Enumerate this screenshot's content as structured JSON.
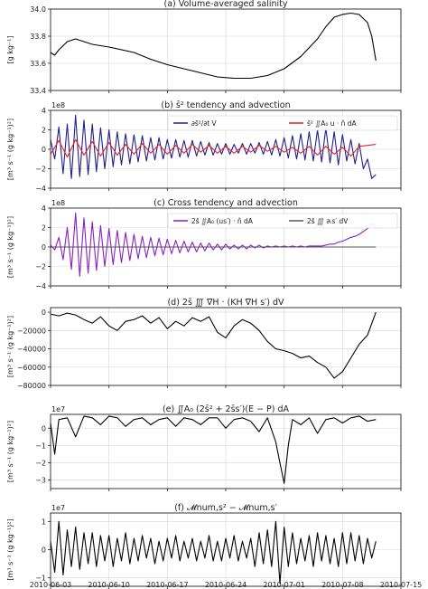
{
  "figure": {
    "date_labels": [
      "2010-06-03",
      "2010-06-10",
      "2010-06-17",
      "2010-06-24",
      "2010-07-01",
      "2010-07-08",
      "2010-07-15"
    ]
  },
  "chart_data": [
    {
      "type": "line",
      "title": "(a) Volume-averaged salinity",
      "ylabel": "[g kg⁻¹]",
      "ylim": [
        33.4,
        34.0
      ],
      "yticks": [
        "33.4",
        "33.6",
        "33.8",
        "34.0"
      ],
      "offset_label": "",
      "grid": true,
      "series": [
        {
          "color": "#000000",
          "x": [
            0,
            0.5,
            1,
            2,
            3,
            4,
            5,
            7,
            10,
            12,
            14,
            16,
            18,
            20,
            22,
            24,
            26,
            28,
            30,
            32,
            33,
            34,
            35,
            36,
            37,
            38,
            38.5,
            39
          ],
          "y": [
            33.68,
            33.66,
            33.7,
            33.76,
            33.78,
            33.76,
            33.74,
            33.72,
            33.68,
            33.63,
            33.59,
            33.56,
            33.53,
            33.5,
            33.49,
            33.49,
            33.51,
            33.56,
            33.65,
            33.78,
            33.87,
            33.94,
            33.96,
            33.97,
            33.96,
            33.9,
            33.8,
            33.62
          ]
        }
      ]
    },
    {
      "type": "line",
      "title": "(b) s̄² tendency and advection",
      "ylabel": "[m³ s⁻¹ (g kg⁻¹)²]",
      "ylim": [
        -4,
        4
      ],
      "yticks": [
        "−4",
        "−2",
        "0",
        "2",
        "4"
      ],
      "offset_label": "1e8",
      "grid": true,
      "legend_position": "top-right",
      "legend": [
        "∂s̄²/∂t V",
        "s̄² ∬A₀ u · n̂ dA"
      ],
      "series": [
        {
          "color": "#1f1f8f",
          "x": [
            0,
            0.5,
            1,
            1.5,
            2,
            2.5,
            3,
            3.5,
            4,
            4.5,
            5,
            5.5,
            6,
            6.5,
            7,
            7.5,
            8,
            8.5,
            9,
            9.5,
            10,
            10.5,
            11,
            11.5,
            12,
            12.5,
            13,
            13.5,
            14,
            14.5,
            15,
            15.5,
            16,
            16.5,
            17,
            17.5,
            18,
            18.5,
            19,
            19.5,
            20,
            20.5,
            21,
            21.5,
            22,
            22.5,
            23,
            23.5,
            24,
            24.5,
            25,
            25.5,
            26,
            26.5,
            27,
            27.5,
            28,
            28.5,
            29,
            29.5,
            30,
            30.5,
            31,
            31.5,
            32,
            32.5,
            33,
            33.5,
            34,
            34.5,
            35,
            35.5,
            36,
            36.5,
            37,
            37.5,
            38,
            38.5,
            39
          ],
          "y": [
            1.0,
            -1.0,
            2.3,
            -2.5,
            2.6,
            -3.0,
            3.5,
            -2.8,
            3.0,
            -2.6,
            2.6,
            -2.3,
            2.2,
            -2.0,
            2.0,
            -1.8,
            1.8,
            -1.6,
            1.6,
            -1.5,
            1.5,
            -1.3,
            1.4,
            -1.2,
            1.2,
            -1.1,
            1.2,
            -1.0,
            1.0,
            -0.9,
            1.0,
            -0.8,
            0.9,
            -0.8,
            0.9,
            -0.7,
            0.8,
            -0.6,
            0.7,
            -0.6,
            0.6,
            -0.5,
            0.6,
            -0.5,
            0.5,
            -0.4,
            0.6,
            -0.5,
            0.6,
            -0.4,
            0.7,
            -0.5,
            0.8,
            -0.6,
            1.0,
            -0.7,
            1.2,
            -0.9,
            1.4,
            -1.0,
            1.6,
            -1.1,
            1.8,
            -1.2,
            2.0,
            -1.3,
            2.2,
            -1.4,
            1.8,
            -1.6,
            1.5,
            -1.2,
            1.0,
            -1.5,
            0.6,
            -2.0,
            -1.0,
            -3.0,
            -2.6
          ]
        },
        {
          "color": "#e8231e",
          "x": [
            0,
            1,
            2,
            3,
            4,
            5,
            6,
            7,
            8,
            9,
            10,
            11,
            12,
            13,
            14,
            15,
            16,
            17,
            18,
            19,
            20,
            21,
            22,
            23,
            24,
            25,
            26,
            27,
            28,
            29,
            30,
            31,
            32,
            33,
            34,
            35,
            36,
            37,
            38,
            39
          ],
          "y": [
            -0.5,
            0.9,
            -0.8,
            1.0,
            -0.6,
            0.8,
            -0.7,
            0.7,
            -0.6,
            0.5,
            -0.5,
            0.6,
            -0.4,
            0.5,
            -0.5,
            0.4,
            -0.4,
            0.5,
            -0.3,
            0.4,
            -0.4,
            0.3,
            -0.4,
            0.3,
            -0.3,
            0.4,
            -0.2,
            0.3,
            -0.3,
            0.2,
            -0.4,
            0.3,
            -0.6,
            0.3,
            -0.5,
            0.2,
            -0.7,
            0.3,
            0.4,
            0.5
          ]
        }
      ]
    },
    {
      "type": "line",
      "title": "(c) Cross tendency and advection",
      "ylabel": "[m³ s⁻¹ (g kg⁻¹)²]",
      "ylim": [
        -4,
        4
      ],
      "yticks": [
        "−4",
        "−2",
        "0",
        "2",
        "4"
      ],
      "offset_label": "1e8",
      "grid": true,
      "legend_position": "top-right",
      "legend": [
        "2s̄ ∬A₀ (us′) · n̂ dA",
        "2s̄ ∭ ∂ₜs′ dV"
      ],
      "series": [
        {
          "color": "#8b1fc4",
          "x": [
            0,
            0.5,
            1,
            1.5,
            2,
            2.5,
            3,
            3.5,
            4,
            4.5,
            5,
            5.5,
            6,
            6.5,
            7,
            7.5,
            8,
            8.5,
            9,
            9.5,
            10,
            10.5,
            11,
            11.5,
            12,
            12.5,
            13,
            13.5,
            14,
            14.5,
            15,
            15.5,
            16,
            16.5,
            17,
            17.5,
            18,
            18.5,
            19,
            19.5,
            20,
            20.5,
            21,
            21.5,
            22,
            22.5,
            23,
            23.5,
            24,
            24.5,
            25,
            25.5,
            26,
            26.5,
            27,
            27.5,
            28,
            28.5,
            29,
            29.5,
            30,
            30.5,
            31,
            31.5,
            32,
            32.5,
            33,
            33.5,
            34,
            34.5,
            35,
            35.5,
            36,
            36.5,
            37,
            37.5,
            38,
            38.5,
            39
          ],
          "y": [
            0.2,
            -0.3,
            1.0,
            -1.3,
            2.0,
            -2.3,
            3.5,
            -3.0,
            3.0,
            -2.7,
            2.6,
            -2.4,
            2.2,
            -2.0,
            1.9,
            -1.8,
            1.7,
            -1.6,
            1.5,
            -1.4,
            1.3,
            -1.2,
            1.1,
            -1.1,
            1.0,
            -0.9,
            0.9,
            -0.8,
            0.8,
            -0.7,
            0.7,
            -0.6,
            0.6,
            -0.5,
            0.5,
            -0.5,
            0.4,
            -0.4,
            0.4,
            -0.3,
            0.3,
            -0.3,
            0.3,
            -0.2,
            0.2,
            -0.2,
            0.2,
            -0.2,
            0.2,
            -0.1,
            0.2,
            -0.1,
            0.1,
            0.0,
            0.1,
            0.0,
            0.1,
            0.0,
            0.1,
            0.0,
            0.1,
            0.0,
            0.1,
            0.1,
            0.1,
            0.1,
            0.2,
            0.3,
            0.3,
            0.5,
            0.6,
            0.8,
            1.0,
            1.1,
            1.3,
            1.6,
            1.9,
            2.4,
            2.0
          ]
        },
        {
          "color": "#555555",
          "x": [
            0,
            39
          ],
          "y": [
            0,
            0
          ]
        }
      ]
    },
    {
      "type": "line",
      "title": "(d) 2s̄ ∭ ∇H · (KH ∇H s′) dV",
      "ylabel": "[m³ s⁻¹ (g kg⁻¹)²]",
      "ylim": [
        -80000,
        5000
      ],
      "yticks": [
        "−80000",
        "−60000",
        "−40000",
        "−20000",
        "0"
      ],
      "offset_label": "",
      "grid": true,
      "series": [
        {
          "color": "#000000",
          "x": [
            0,
            1,
            2,
            3,
            4,
            5,
            6,
            7,
            8,
            9,
            10,
            11,
            12,
            13,
            14,
            15,
            16,
            17,
            18,
            19,
            20,
            21,
            22,
            23,
            24,
            25,
            26,
            27,
            28,
            29,
            30,
            31,
            32,
            33,
            34,
            35,
            36,
            37,
            38,
            39
          ],
          "y": [
            -2000,
            -4000,
            -1000,
            -3000,
            -8000,
            -12000,
            -5000,
            -15000,
            -20000,
            -10000,
            -8000,
            -4000,
            -12000,
            -6000,
            -18000,
            -10000,
            -15000,
            -6000,
            -10000,
            -5000,
            -22000,
            -28000,
            -15000,
            -8000,
            -12000,
            -20000,
            -32000,
            -40000,
            -42000,
            -45000,
            -50000,
            -48000,
            -55000,
            -60000,
            -72000,
            -65000,
            -50000,
            -35000,
            -25000,
            0
          ]
        }
      ]
    },
    {
      "type": "line",
      "title": "(e) ∬A₀ (2s̄² + 2s̄s′)(E − P) dA",
      "ylabel": "[m³ s⁻¹ (g kg⁻¹)²]",
      "ylim": [
        -3.5,
        0.8
      ],
      "yticks": [
        "−3",
        "−2",
        "−1",
        "0"
      ],
      "offset_label": "1e7",
      "grid": true,
      "series": [
        {
          "color": "#000000",
          "x": [
            0,
            0.5,
            1,
            2,
            3,
            4,
            5,
            6,
            7,
            8,
            9,
            10,
            11,
            12,
            13,
            14,
            15,
            16,
            17,
            18,
            19,
            20,
            21,
            22,
            23,
            24,
            25,
            26,
            27,
            27.5,
            28,
            28.5,
            29,
            30,
            31,
            32,
            33,
            34,
            35,
            36,
            37,
            38,
            39
          ],
          "y": [
            0.3,
            -1.5,
            0.5,
            0.6,
            -0.5,
            0.7,
            0.6,
            0.2,
            0.7,
            0.6,
            0.1,
            0.5,
            0.6,
            0.2,
            0.5,
            0.6,
            0.1,
            0.6,
            0.5,
            0.2,
            0.6,
            0.6,
            0.0,
            0.5,
            0.6,
            0.4,
            -0.2,
            0.6,
            -0.8,
            -2.0,
            -3.2,
            -1.0,
            0.5,
            0.2,
            0.6,
            -0.3,
            0.5,
            0.6,
            0.3,
            0.6,
            0.7,
            0.4,
            0.5
          ]
        }
      ]
    },
    {
      "type": "line",
      "title": "(f) 𝓜num,s² − 𝓜num,s′",
      "ylabel": "[m³ s⁻¹ (g kg⁻¹)²]",
      "ylim": [
        -1.3,
        1.3
      ],
      "yticks": [
        "−1",
        "0",
        "1"
      ],
      "offset_label": "1e7",
      "grid": true,
      "series": [
        {
          "color": "#000000",
          "x": [
            0,
            0.5,
            1,
            1.5,
            2,
            2.5,
            3,
            3.5,
            4,
            4.5,
            5,
            5.5,
            6,
            6.5,
            7,
            7.5,
            8,
            8.5,
            9,
            9.5,
            10,
            10.5,
            11,
            11.5,
            12,
            12.5,
            13,
            13.5,
            14,
            14.5,
            15,
            15.5,
            16,
            16.5,
            17,
            17.5,
            18,
            18.5,
            19,
            19.5,
            20,
            20.5,
            21,
            21.5,
            22,
            22.5,
            23,
            23.5,
            24,
            24.5,
            25,
            25.5,
            26,
            26.5,
            27,
            27.5,
            28,
            28.5,
            29,
            29.5,
            30,
            30.5,
            31,
            31.5,
            32,
            32.5,
            33,
            33.5,
            34,
            34.5,
            35,
            35.5,
            36,
            36.5,
            37,
            37.5,
            38,
            38.5,
            39
          ],
          "y": [
            0.3,
            -0.8,
            1.0,
            -0.9,
            0.7,
            -0.6,
            0.8,
            -0.7,
            0.6,
            -0.5,
            0.6,
            -0.6,
            0.5,
            -0.4,
            0.5,
            -0.6,
            0.4,
            -0.4,
            0.6,
            -0.5,
            0.4,
            -0.4,
            0.5,
            -0.3,
            0.4,
            -0.5,
            0.3,
            -0.4,
            0.4,
            -0.3,
            0.5,
            -0.4,
            0.3,
            -0.3,
            0.4,
            -0.4,
            0.3,
            -0.3,
            0.5,
            -0.4,
            0.3,
            -0.4,
            0.4,
            -0.3,
            0.5,
            -0.4,
            0.3,
            -0.3,
            0.4,
            -0.6,
            0.6,
            -0.5,
            0.7,
            -0.6,
            1.0,
            -1.2,
            0.8,
            -0.6,
            0.6,
            -0.5,
            0.4,
            -0.4,
            0.5,
            -0.6,
            0.6,
            -0.4,
            0.5,
            -0.5,
            0.4,
            -0.6,
            0.6,
            -0.5,
            0.6,
            -0.4,
            0.5,
            -0.5,
            0.4,
            -0.3,
            0.3
          ]
        }
      ]
    }
  ]
}
